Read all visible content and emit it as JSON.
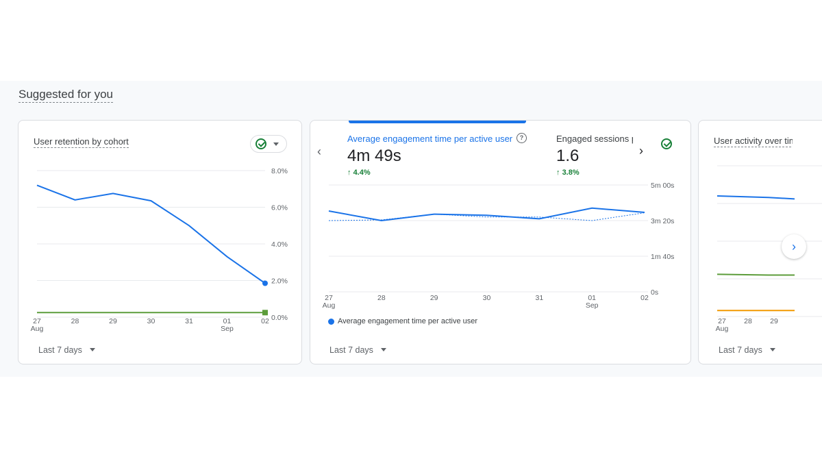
{
  "section": {
    "title": "Suggested for you"
  },
  "cards": [
    {
      "title": "User retention by cohort",
      "footer": "Last 7 days",
      "chart_data": {
        "type": "line",
        "x": [
          "27",
          "28",
          "29",
          "30",
          "31",
          "01",
          "02"
        ],
        "x_sublabels": {
          "27": "Aug",
          "01": "Sep"
        },
        "y_ticks": [
          "8.0%",
          "6.0%",
          "4.0%",
          "2.0%",
          "0.0%"
        ],
        "ylim": [
          0,
          8
        ],
        "series": [
          {
            "color": "#1a73e8",
            "values": [
              7.2,
              6.4,
              6.75,
              6.35,
              5.0,
              3.3,
              1.85
            ]
          },
          {
            "color": "#5c9c3a",
            "values": [
              0.25,
              0.25,
              0.25,
              0.25,
              0.25,
              0.25,
              0.25
            ]
          }
        ]
      }
    },
    {
      "metrics": [
        {
          "label": "Average engagement time per active user",
          "value": "4m 49s",
          "delta": "4.4%"
        },
        {
          "label": "Engaged sessions per user",
          "value": "1.6",
          "delta": "3.8%"
        }
      ],
      "footer": "Last 7 days",
      "chart_data": {
        "type": "line",
        "x": [
          "27",
          "28",
          "29",
          "30",
          "31",
          "01",
          "02"
        ],
        "x_sublabels": {
          "27": "Aug",
          "01": "Sep"
        },
        "y_ticks": [
          "5m 00s",
          "3m 20s",
          "1m 40s",
          "0s"
        ],
        "ylim": [
          0,
          300
        ],
        "legend": "Average engagement time per active user",
        "series": [
          {
            "name": "Average engagement time per active user",
            "color": "#1a73e8",
            "values": [
              227,
              200,
              218,
              215,
              205,
              235,
              223
            ]
          },
          {
            "color": "#1a73e8",
            "dashed": true,
            "values": [
              200,
              202,
              218,
              210,
              210,
              200,
              222
            ]
          }
        ]
      }
    },
    {
      "title": "User activity over time",
      "footer": "Last 7 days",
      "chart_data": {
        "type": "line",
        "x": [
          "27",
          "28",
          "29"
        ],
        "x_sublabels": {
          "27": "Aug"
        },
        "series": [
          {
            "color": "#1a73e8",
            "values": [
              0.8,
              0.79,
              0.78
            ]
          },
          {
            "color": "#5c9c3a",
            "values": [
              0.28,
              0.275,
              0.275
            ]
          },
          {
            "color": "#f29900",
            "values": [
              0.04,
              0.04,
              0.04
            ]
          }
        ]
      }
    }
  ]
}
